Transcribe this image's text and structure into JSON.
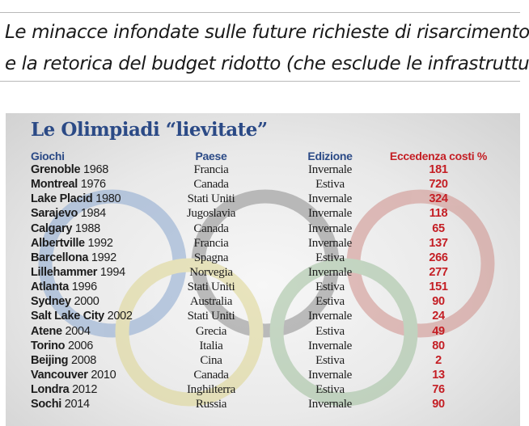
{
  "headline": {
    "line1": "Le minacce infondate sulle future richieste di risarcimento",
    "line2": "e la retorica del budget ridotto (che esclude le infrastrutture)"
  },
  "table": {
    "title": "Le Olimpiadi “lievitate”",
    "headers": {
      "games": "Giochi",
      "country": "Paese",
      "edition": "Edizione",
      "excess": "Eccedenza costi %"
    },
    "rows": [
      {
        "city": "Grenoble",
        "year": "1968",
        "country": "Francia",
        "edition": "Invernale",
        "excess": "181"
      },
      {
        "city": "Montreal",
        "year": "1976",
        "country": "Canada",
        "edition": "Estiva",
        "excess": "720"
      },
      {
        "city": "Lake Placid",
        "year": "1980",
        "country": "Stati Uniti",
        "edition": "Invernale",
        "excess": "324"
      },
      {
        "city": "Sarajevo",
        "year": "1984",
        "country": "Jugoslavia",
        "edition": "Invernale",
        "excess": "118"
      },
      {
        "city": "Calgary",
        "year": "1988",
        "country": "Canada",
        "edition": "Invernale",
        "excess": "65"
      },
      {
        "city": "Albertville",
        "year": "1992",
        "country": "Francia",
        "edition": "Invernale",
        "excess": "137"
      },
      {
        "city": "Barcellona",
        "year": "1992",
        "country": "Spagna",
        "edition": "Estiva",
        "excess": "266"
      },
      {
        "city": "Lillehammer",
        "year": "1994",
        "country": "Norvegia",
        "edition": "Invernale",
        "excess": "277"
      },
      {
        "city": "Atlanta",
        "year": "1996",
        "country": "Stati Uniti",
        "edition": "Estiva",
        "excess": "151"
      },
      {
        "city": "Sydney",
        "year": "2000",
        "country": "Australia",
        "edition": "Estiva",
        "excess": "90"
      },
      {
        "city": "Salt Lake City",
        "year": "2002",
        "country": "Stati Uniti",
        "edition": "Invernale",
        "excess": "24"
      },
      {
        "city": "Atene",
        "year": "2004",
        "country": "Grecia",
        "edition": "Estiva",
        "excess": "49"
      },
      {
        "city": "Torino",
        "year": "2006",
        "country": "Italia",
        "edition": "Invernale",
        "excess": "80"
      },
      {
        "city": "Beijing",
        "year": "2008",
        "country": "Cina",
        "edition": "Estiva",
        "excess": "2"
      },
      {
        "city": "Vancouver",
        "year": "2010",
        "country": "Canada",
        "edition": "Invernale",
        "excess": "13"
      },
      {
        "city": "Londra",
        "year": "2012",
        "country": "Inghilterra",
        "edition": "Estiva",
        "excess": "76"
      },
      {
        "city": "Sochi",
        "year": "2014",
        "country": "Russia",
        "edition": "Invernale",
        "excess": "90"
      }
    ]
  },
  "colors": {
    "title_blue": "#2b4a86",
    "excess_red": "#c41e24",
    "ring_blue": "#8aa7cf",
    "ring_black": "#8c8c8c",
    "ring_red": "#cf8f8a",
    "ring_yellow": "#ddd58f",
    "ring_green": "#9fbf9c"
  },
  "icons": {
    "background": "olympic-rings-icon"
  }
}
